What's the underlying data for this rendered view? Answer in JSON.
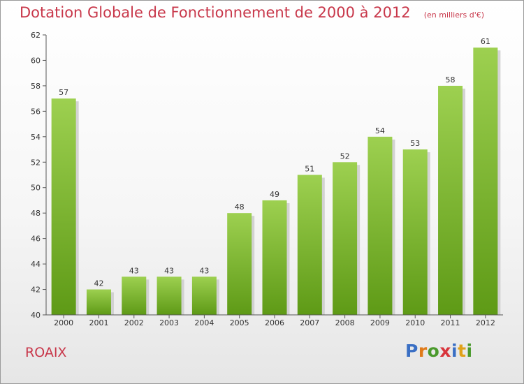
{
  "header": {
    "title": "Dotation Globale de Fonctionnement de 2000 à 2012",
    "unit": "(en milliers d'€)"
  },
  "footer": {
    "commune": "ROAIX",
    "logo": [
      "P",
      "r",
      "o",
      "x",
      "i",
      "t",
      "i"
    ],
    "logo_colors": [
      "#3a6fc4",
      "#e07b1a",
      "#4a9a2c",
      "#d8343c",
      "#3a6fc4",
      "#e0a21a",
      "#4a9a2c"
    ]
  },
  "chart_data": {
    "type": "bar",
    "title": "Dotation Globale de Fonctionnement de 2000 à 2012",
    "subtitle": "(en milliers d'€)",
    "categories": [
      "2000",
      "2001",
      "2002",
      "2003",
      "2004",
      "2005",
      "2006",
      "2007",
      "2008",
      "2009",
      "2010",
      "2011",
      "2012"
    ],
    "values": [
      57,
      42,
      43,
      43,
      43,
      48,
      49,
      51,
      52,
      54,
      53,
      58,
      61
    ],
    "ylim": [
      40,
      62
    ],
    "yticks": [
      40,
      42,
      44,
      46,
      48,
      50,
      52,
      54,
      56,
      58,
      60,
      62
    ],
    "grid": false,
    "colors": {
      "bar_top": "#9dd050",
      "bar_bottom": "#5e9a16",
      "shadow": "#c9c9c9"
    }
  }
}
